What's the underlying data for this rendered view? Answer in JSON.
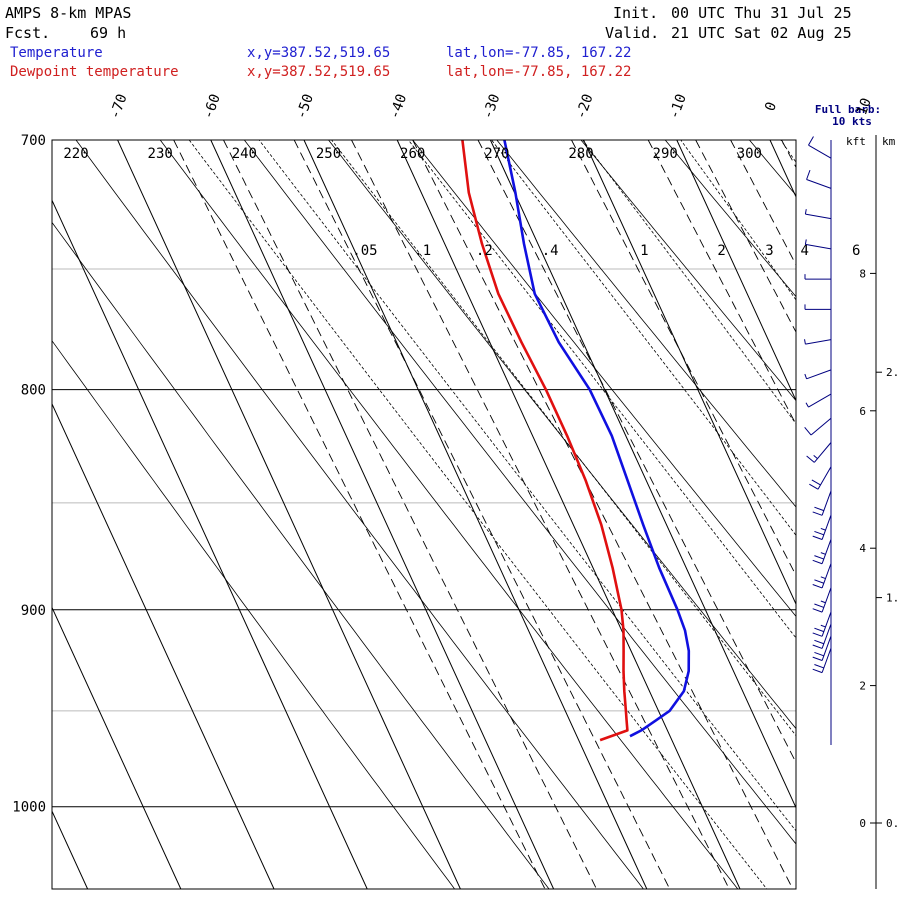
{
  "header": {
    "model": "AMPS 8-km MPAS",
    "fcst_label": "Fcst.",
    "fcst_value": "69 h",
    "init_label": "Init.",
    "init_value": "00 UTC Thu 31 Jul 25",
    "valid_label": "Valid.",
    "valid_value": "21 UTC Sat 02 Aug 25",
    "temp_label": "Temperature",
    "temp_xy": "x,y=387.52,519.65",
    "temp_latlon": "lat,lon=-77.85, 167.22",
    "dew_label": "Dewpoint temperature",
    "dew_xy": "x,y=387.52,519.65",
    "dew_latlon": "lat,lon=-77.85, 167.22"
  },
  "barb_legend": {
    "line1": "Full barb:",
    "line2": "10 kts"
  },
  "height_axis": {
    "kft_label": "kft",
    "km_label": "km",
    "kft_ticks": [
      {
        "value": 0,
        "label": "0"
      },
      {
        "value": 2,
        "label": "2"
      },
      {
        "value": 4,
        "label": "4"
      },
      {
        "value": 6,
        "label": "6"
      },
      {
        "value": 8,
        "label": "8"
      }
    ],
    "km_ticks": [
      {
        "value": 0,
        "label": "0."
      },
      {
        "value": 1,
        "label": "1."
      },
      {
        "value": 2,
        "label": "2."
      }
    ]
  },
  "colors": {
    "temperature": "#1010e0",
    "dewpoint": "#e01010",
    "legend_temperature": "#2020d0",
    "legend_dewpoint": "#d02020",
    "barb_legend": "#000080",
    "grid": "#000000",
    "isobar_minor": "#bbbbbb"
  },
  "chart_data": {
    "type": "line",
    "subtype": "skew-T log-P sounding",
    "pressure_range_hPa": [
      1045,
      700
    ],
    "major_isobars_hPa": [
      700,
      800,
      900,
      1000
    ],
    "minor_isobars_hPa": [
      750,
      850,
      950
    ],
    "isotherm_labels_C": [
      -70,
      -60,
      -50,
      -40,
      -30,
      -20,
      -10,
      0,
      10
    ],
    "theta_labels_K": [
      220,
      230,
      240,
      250,
      260,
      270,
      280,
      290,
      300
    ],
    "mixing_ratio_labels": [
      ".05",
      ".1",
      ".2",
      ".4",
      "1",
      "2",
      "3",
      "4",
      "6"
    ],
    "series": [
      {
        "name": "Temperature",
        "pressure_hPa": [
          700,
          720,
          740,
          760,
          780,
          800,
          820,
          840,
          860,
          880,
          900,
          910,
          920,
          930,
          940,
          950,
          955,
          960,
          963
        ],
        "temperature_C": [
          -28.5,
          -29.9,
          -31.5,
          -32.8,
          -32.6,
          -31.6,
          -31.5,
          -32.0,
          -32.5,
          -32.9,
          -33.0,
          -33.2,
          -33.8,
          -34.8,
          -36.3,
          -38.8,
          -40.8,
          -42.8,
          -44.3
        ]
      },
      {
        "name": "Dewpoint temperature",
        "pressure_hPa": [
          700,
          720,
          740,
          760,
          780,
          800,
          820,
          840,
          860,
          880,
          900,
          910,
          920,
          930,
          940,
          950,
          955,
          960,
          965
        ],
        "temperature_C": [
          -33.0,
          -34.9,
          -36.0,
          -36.7,
          -36.6,
          -36.3,
          -36.3,
          -36.5,
          -37.0,
          -37.9,
          -39.0,
          -39.8,
          -40.8,
          -41.8,
          -42.7,
          -43.5,
          -43.9,
          -44.3,
          -47.7
        ]
      }
    ],
    "wind_barbs": [
      {
        "y_frac": 0.03,
        "dir": 300,
        "spd": 10
      },
      {
        "y_frac": 0.08,
        "dir": 290,
        "spd": 10
      },
      {
        "y_frac": 0.13,
        "dir": 280,
        "spd": 5
      },
      {
        "y_frac": 0.18,
        "dir": 280,
        "spd": 5
      },
      {
        "y_frac": 0.23,
        "dir": 270,
        "spd": 5
      },
      {
        "y_frac": 0.28,
        "dir": 270,
        "spd": 5
      },
      {
        "y_frac": 0.33,
        "dir": 260,
        "spd": 5
      },
      {
        "y_frac": 0.38,
        "dir": 250,
        "spd": 5
      },
      {
        "y_frac": 0.42,
        "dir": 240,
        "spd": 5
      },
      {
        "y_frac": 0.46,
        "dir": 230,
        "spd": 10
      },
      {
        "y_frac": 0.5,
        "dir": 220,
        "spd": 15
      },
      {
        "y_frac": 0.54,
        "dir": 210,
        "spd": 20
      },
      {
        "y_frac": 0.58,
        "dir": 200,
        "spd": 20
      },
      {
        "y_frac": 0.62,
        "dir": 200,
        "spd": 25
      },
      {
        "y_frac": 0.66,
        "dir": 200,
        "spd": 25
      },
      {
        "y_frac": 0.7,
        "dir": 200,
        "spd": 25
      },
      {
        "y_frac": 0.74,
        "dir": 200,
        "spd": 25
      },
      {
        "y_frac": 0.78,
        "dir": 200,
        "spd": 25
      },
      {
        "y_frac": 0.8,
        "dir": 200,
        "spd": 20
      },
      {
        "y_frac": 0.82,
        "dir": 200,
        "spd": 20
      },
      {
        "y_frac": 0.84,
        "dir": 200,
        "spd": 20
      }
    ]
  }
}
